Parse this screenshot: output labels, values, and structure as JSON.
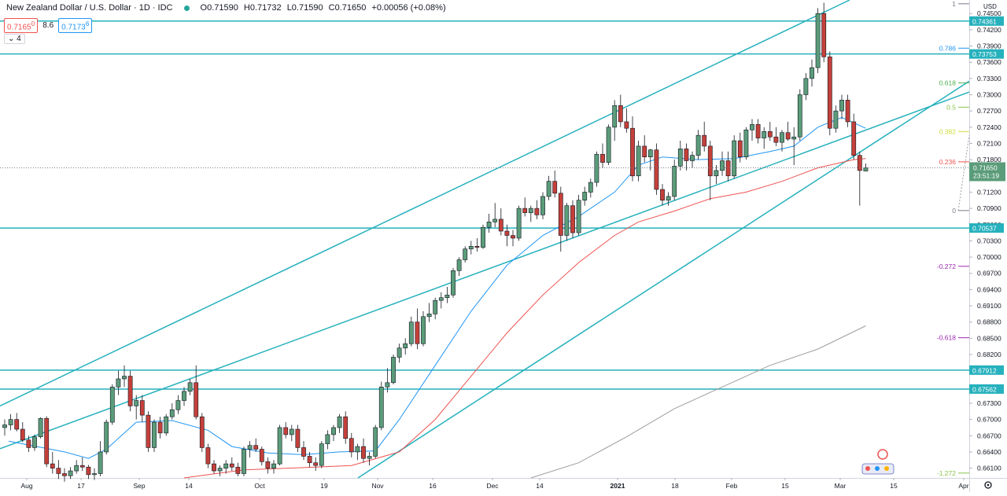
{
  "header": {
    "title": "New Zealand Dollar / U.S. Dollar · 1D · IDC",
    "open": "O0.71590",
    "high": "H0.71732",
    "low": "L0.71590",
    "close": "C0.71650",
    "change": "+0.00056 (+0.08%)",
    "badge_sell": "0.7165",
    "badge_sell_sup": "0",
    "spread": "8.6",
    "badge_buy": "0.7173",
    "badge_buy_sup": "6",
    "collapse_label": "⌄ 4"
  },
  "axis": {
    "currency": "USD",
    "clock": "23:51:19",
    "y_labels": [
      "0.74500",
      "0.74200",
      "0.73900",
      "0.73600",
      "0.73300",
      "0.73000",
      "0.72700",
      "0.72400",
      "0.72100",
      "0.71800",
      "0.71500",
      "0.71200",
      "0.70900",
      "0.70600",
      "0.70300",
      "0.70000",
      "0.69700",
      "0.69400",
      "0.69100",
      "0.68800",
      "0.68500",
      "0.68200",
      "0.67900",
      "0.67600",
      "0.67300",
      "0.67000",
      "0.66700",
      "0.66400",
      "0.66100"
    ],
    "x_labels": [
      "Aug",
      "17",
      "Sep",
      "14",
      "Oct",
      "19",
      "Nov",
      "16",
      "Dec",
      "14",
      "2021",
      "18",
      "Feb",
      "15",
      "Mar",
      "15",
      "Apr"
    ],
    "settings_icon": "gear-icon"
  },
  "colors": {
    "up": "#26a69a",
    "up_body": "#5b9c7a",
    "down": "#c4403a",
    "wick": "#131722",
    "channel": "#26b1bd",
    "ma_fast": "#2196f3",
    "ma_mid": "#ef5350",
    "ma_slow": "#9e9e9e",
    "fib_236": "#ef5350",
    "fib_382": "#cddc39",
    "fib_5": "#8bc34a",
    "fib_618": "#4caf50",
    "fib_786": "#2196f3",
    "fib_neg": "#9c27b0",
    "fib_neg_1272": "#8bc34a"
  },
  "chart_data": {
    "type": "candlestick",
    "title": "New Zealand Dollar / U.S. Dollar · 1D · IDC",
    "ylim": [
      0.6592,
      0.7475
    ],
    "horizontal_levels": [
      {
        "value": 0.74361,
        "label": "0.74361"
      },
      {
        "value": 0.73753,
        "label": "0.73753"
      },
      {
        "value": 0.70537,
        "label": "0.70537"
      },
      {
        "value": 0.67912,
        "label": "0.67912"
      },
      {
        "value": 0.67562,
        "label": "0.67562"
      }
    ],
    "fib_levels": [
      {
        "label": "1",
        "value": 0.7468
      },
      {
        "label": "0.786",
        "value": 0.7386
      },
      {
        "label": "0.618",
        "value": 0.7322
      },
      {
        "label": "0.5",
        "value": 0.7277
      },
      {
        "label": "0.382",
        "value": 0.7232
      },
      {
        "label": "0.236",
        "value": 0.7176
      },
      {
        "label": "0",
        "value": 0.7086
      },
      {
        "label": "-0.272",
        "value": 0.6983
      },
      {
        "label": "-0.618",
        "value": 0.6851
      },
      {
        "label": "-1.272",
        "value": 0.6601
      }
    ],
    "last_price": {
      "value": 0.7165,
      "label": "0.71650"
    },
    "candles": [
      [
        0.6685,
        0.67,
        0.667,
        0.669
      ],
      [
        0.669,
        0.671,
        0.668,
        0.67
      ],
      [
        0.67,
        0.6712,
        0.6678,
        0.6682
      ],
      [
        0.6682,
        0.6695,
        0.6658,
        0.6662
      ],
      [
        0.6662,
        0.667,
        0.664,
        0.6648
      ],
      [
        0.6648,
        0.6672,
        0.6642,
        0.6668
      ],
      [
        0.6668,
        0.6704,
        0.6665,
        0.6702
      ],
      [
        0.6702,
        0.6706,
        0.6612,
        0.6618
      ],
      [
        0.6618,
        0.664,
        0.66,
        0.661
      ],
      [
        0.661,
        0.6625,
        0.659,
        0.66
      ],
      [
        0.66,
        0.661,
        0.6585,
        0.6596
      ],
      [
        0.6596,
        0.6612,
        0.659,
        0.6605
      ],
      [
        0.6605,
        0.6625,
        0.66,
        0.6615
      ],
      [
        0.6615,
        0.663,
        0.6605,
        0.6612
      ],
      [
        0.6612,
        0.6616,
        0.659,
        0.6598
      ],
      [
        0.6598,
        0.661,
        0.6588,
        0.66
      ],
      [
        0.66,
        0.666,
        0.6595,
        0.664
      ],
      [
        0.664,
        0.67,
        0.6635,
        0.6695
      ],
      [
        0.6695,
        0.6765,
        0.669,
        0.676
      ],
      [
        0.676,
        0.679,
        0.6745,
        0.6775
      ],
      [
        0.6775,
        0.68,
        0.676,
        0.678
      ],
      [
        0.678,
        0.679,
        0.6715,
        0.6725
      ],
      [
        0.6725,
        0.6745,
        0.67,
        0.6735
      ],
      [
        0.6735,
        0.6745,
        0.6695,
        0.6708
      ],
      [
        0.6708,
        0.6715,
        0.664,
        0.6648
      ],
      [
        0.6648,
        0.67,
        0.664,
        0.6695
      ],
      [
        0.6695,
        0.6705,
        0.6665,
        0.6675
      ],
      [
        0.6675,
        0.671,
        0.667,
        0.6705
      ],
      [
        0.6705,
        0.673,
        0.67,
        0.6718
      ],
      [
        0.6718,
        0.6745,
        0.671,
        0.6735
      ],
      [
        0.6735,
        0.676,
        0.6725,
        0.6752
      ],
      [
        0.6752,
        0.6775,
        0.6745,
        0.6768
      ],
      [
        0.6768,
        0.68,
        0.67,
        0.6705
      ],
      [
        0.6705,
        0.6712,
        0.664,
        0.6648
      ],
      [
        0.6648,
        0.6655,
        0.661,
        0.6618
      ],
      [
        0.6618,
        0.6625,
        0.66,
        0.6605
      ],
      [
        0.6605,
        0.6615,
        0.6595,
        0.661
      ],
      [
        0.661,
        0.6625,
        0.66,
        0.6618
      ],
      [
        0.6618,
        0.663,
        0.6605,
        0.6612
      ],
      [
        0.6612,
        0.662,
        0.6595,
        0.66
      ],
      [
        0.66,
        0.665,
        0.6595,
        0.6645
      ],
      [
        0.6645,
        0.666,
        0.663,
        0.6652
      ],
      [
        0.6652,
        0.6665,
        0.664,
        0.6645
      ],
      [
        0.6645,
        0.665,
        0.6615,
        0.6622
      ],
      [
        0.6622,
        0.663,
        0.66,
        0.661
      ],
      [
        0.661,
        0.6625,
        0.66,
        0.6618
      ],
      [
        0.6618,
        0.669,
        0.6615,
        0.6685
      ],
      [
        0.6685,
        0.6695,
        0.6665,
        0.6672
      ],
      [
        0.6672,
        0.669,
        0.666,
        0.6682
      ],
      [
        0.6682,
        0.669,
        0.664,
        0.6648
      ],
      [
        0.6648,
        0.666,
        0.6625,
        0.6632
      ],
      [
        0.6632,
        0.664,
        0.6612,
        0.662
      ],
      [
        0.662,
        0.663,
        0.6605,
        0.6615
      ],
      [
        0.6615,
        0.666,
        0.661,
        0.6655
      ],
      [
        0.6655,
        0.668,
        0.6645,
        0.6672
      ],
      [
        0.6672,
        0.669,
        0.666,
        0.6685
      ],
      [
        0.6685,
        0.671,
        0.6675,
        0.6705
      ],
      [
        0.6705,
        0.6715,
        0.6655,
        0.6665
      ],
      [
        0.6665,
        0.6675,
        0.663,
        0.664
      ],
      [
        0.664,
        0.6655,
        0.6625,
        0.665
      ],
      [
        0.665,
        0.6665,
        0.662,
        0.6628
      ],
      [
        0.6628,
        0.664,
        0.6615,
        0.6632
      ],
      [
        0.6632,
        0.669,
        0.6628,
        0.6685
      ],
      [
        0.6685,
        0.677,
        0.668,
        0.676
      ],
      [
        0.676,
        0.6795,
        0.675,
        0.6768
      ],
      [
        0.6768,
        0.682,
        0.6765,
        0.6815
      ],
      [
        0.6815,
        0.684,
        0.6805,
        0.6832
      ],
      [
        0.6832,
        0.685,
        0.682,
        0.684
      ],
      [
        0.684,
        0.689,
        0.6835,
        0.688
      ],
      [
        0.688,
        0.6905,
        0.683,
        0.684
      ],
      [
        0.684,
        0.69,
        0.6835,
        0.689
      ],
      [
        0.689,
        0.6915,
        0.688,
        0.6895
      ],
      [
        0.6895,
        0.6925,
        0.6885,
        0.692
      ],
      [
        0.692,
        0.6935,
        0.6905,
        0.6925
      ],
      [
        0.6925,
        0.6945,
        0.6915,
        0.693
      ],
      [
        0.693,
        0.698,
        0.6925,
        0.6975
      ],
      [
        0.6975,
        0.7,
        0.6965,
        0.6995
      ],
      [
        0.6995,
        0.702,
        0.699,
        0.7015
      ],
      [
        0.7015,
        0.703,
        0.7005,
        0.702
      ],
      [
        0.702,
        0.7035,
        0.701,
        0.7018
      ],
      [
        0.7018,
        0.706,
        0.7015,
        0.7055
      ],
      [
        0.7055,
        0.708,
        0.7045,
        0.7065
      ],
      [
        0.7065,
        0.71,
        0.7055,
        0.707
      ],
      [
        0.707,
        0.709,
        0.704,
        0.7048
      ],
      [
        0.7048,
        0.706,
        0.702,
        0.704
      ],
      [
        0.704,
        0.705,
        0.702,
        0.7035
      ],
      [
        0.7035,
        0.7095,
        0.703,
        0.709
      ],
      [
        0.709,
        0.711,
        0.7075,
        0.7082
      ],
      [
        0.7082,
        0.7095,
        0.7065,
        0.709
      ],
      [
        0.709,
        0.7105,
        0.707,
        0.7078
      ],
      [
        0.7078,
        0.712,
        0.707,
        0.7112
      ],
      [
        0.7112,
        0.715,
        0.7105,
        0.714
      ],
      [
        0.714,
        0.716,
        0.711,
        0.7118
      ],
      [
        0.7118,
        0.713,
        0.701,
        0.704
      ],
      [
        0.704,
        0.71,
        0.703,
        0.7095
      ],
      [
        0.7095,
        0.7105,
        0.7035,
        0.7045
      ],
      [
        0.7045,
        0.7115,
        0.704,
        0.7105
      ],
      [
        0.7105,
        0.713,
        0.7095,
        0.712
      ],
      [
        0.712,
        0.7145,
        0.711,
        0.7138
      ],
      [
        0.7138,
        0.7195,
        0.713,
        0.719
      ],
      [
        0.719,
        0.721,
        0.7165,
        0.7175
      ],
      [
        0.7175,
        0.7245,
        0.717,
        0.724
      ],
      [
        0.724,
        0.729,
        0.7215,
        0.728
      ],
      [
        0.728,
        0.73,
        0.724,
        0.725
      ],
      [
        0.725,
        0.7275,
        0.723,
        0.7238
      ],
      [
        0.7238,
        0.726,
        0.714,
        0.715
      ],
      [
        0.715,
        0.7215,
        0.714,
        0.7205
      ],
      [
        0.7205,
        0.7225,
        0.7175,
        0.7185
      ],
      [
        0.7185,
        0.72,
        0.716,
        0.7198
      ],
      [
        0.7198,
        0.721,
        0.7115,
        0.7125
      ],
      [
        0.7125,
        0.7135,
        0.7095,
        0.7105
      ],
      [
        0.7105,
        0.712,
        0.7095,
        0.7112
      ],
      [
        0.7112,
        0.718,
        0.7105,
        0.7168
      ],
      [
        0.7168,
        0.7215,
        0.716,
        0.72
      ],
      [
        0.72,
        0.721,
        0.716,
        0.7178
      ],
      [
        0.7178,
        0.7195,
        0.7165,
        0.7188
      ],
      [
        0.7188,
        0.7235,
        0.718,
        0.7225
      ],
      [
        0.7225,
        0.725,
        0.7195,
        0.7205
      ],
      [
        0.7205,
        0.7215,
        0.7105,
        0.715
      ],
      [
        0.715,
        0.717,
        0.7135,
        0.716
      ],
      [
        0.716,
        0.7195,
        0.715,
        0.7178
      ],
      [
        0.7178,
        0.7195,
        0.714,
        0.715
      ],
      [
        0.715,
        0.7225,
        0.7145,
        0.7215
      ],
      [
        0.7215,
        0.723,
        0.7175,
        0.7185
      ],
      [
        0.7185,
        0.724,
        0.718,
        0.7235
      ],
      [
        0.7235,
        0.7255,
        0.7215,
        0.7245
      ],
      [
        0.7245,
        0.7255,
        0.721,
        0.722
      ],
      [
        0.722,
        0.724,
        0.72,
        0.7232
      ],
      [
        0.7232,
        0.725,
        0.7215,
        0.7222
      ],
      [
        0.7222,
        0.724,
        0.7205,
        0.7212
      ],
      [
        0.7212,
        0.7235,
        0.7195,
        0.723
      ],
      [
        0.723,
        0.725,
        0.7215,
        0.7218
      ],
      [
        0.7218,
        0.724,
        0.717,
        0.7222
      ],
      [
        0.7222,
        0.731,
        0.7215,
        0.73
      ],
      [
        0.73,
        0.734,
        0.729,
        0.733
      ],
      [
        0.733,
        0.7365,
        0.7315,
        0.735
      ],
      [
        0.735,
        0.746,
        0.734,
        0.745
      ],
      [
        0.745,
        0.747,
        0.736,
        0.737
      ],
      [
        0.737,
        0.738,
        0.7225,
        0.7238
      ],
      [
        0.7238,
        0.728,
        0.723,
        0.727
      ],
      [
        0.727,
        0.73,
        0.7255,
        0.729
      ],
      [
        0.729,
        0.73,
        0.724,
        0.725
      ],
      [
        0.725,
        0.7265,
        0.718,
        0.7188
      ],
      [
        0.7188,
        0.7195,
        0.7095,
        0.716
      ],
      [
        0.7159,
        0.7173,
        0.7159,
        0.7165
      ]
    ],
    "moving_averages": [
      {
        "period": 20,
        "color": "#2196f3",
        "points": [
          [
            0.664,
            0.666
          ],
          [
            10,
            0.664
          ],
          [
            14,
            0.6628
          ],
          [
            17,
            0.6645
          ],
          [
            22,
            0.6695
          ],
          [
            28,
            0.6698
          ],
          [
            34,
            0.668
          ],
          [
            38,
            0.665
          ],
          [
            44,
            0.6638
          ],
          [
            50,
            0.6635
          ],
          [
            56,
            0.664
          ],
          [
            62,
            0.6642
          ],
          [
            66,
            0.67
          ],
          [
            72,
            0.68
          ],
          [
            78,
            0.69
          ],
          [
            84,
            0.6985
          ],
          [
            90,
            0.704
          ],
          [
            96,
            0.7075
          ],
          [
            102,
            0.712
          ],
          [
            106,
            0.717
          ],
          [
            110,
            0.7185
          ],
          [
            116,
            0.718
          ],
          [
            122,
            0.7182
          ],
          [
            128,
            0.7195
          ],
          [
            132,
            0.7205
          ],
          [
            136,
            0.724
          ],
          [
            140,
            0.7258
          ],
          [
            144,
            0.7238
          ]
        ]
      },
      {
        "period": 50,
        "color": "#ef5350",
        "points": [
          [
            30,
            0.6592
          ],
          [
            40,
            0.6607
          ],
          [
            50,
            0.6611
          ],
          [
            58,
            0.6615
          ],
          [
            66,
            0.664
          ],
          [
            72,
            0.67
          ],
          [
            78,
            0.678
          ],
          [
            84,
            0.686
          ],
          [
            90,
            0.693
          ],
          [
            96,
            0.699
          ],
          [
            102,
            0.704
          ],
          [
            106,
            0.7065
          ],
          [
            112,
            0.7085
          ],
          [
            118,
            0.7108
          ],
          [
            124,
            0.712
          ],
          [
            130,
            0.714
          ],
          [
            136,
            0.7165
          ],
          [
            142,
            0.718
          ],
          [
            144,
            0.7182
          ]
        ]
      },
      {
        "period": 200,
        "color": "#9e9e9e",
        "points": [
          [
            88,
            0.6592
          ],
          [
            96,
            0.662
          ],
          [
            104,
            0.6668
          ],
          [
            112,
            0.672
          ],
          [
            120,
            0.676
          ],
          [
            128,
            0.68
          ],
          [
            136,
            0.683
          ],
          [
            144,
            0.6873
          ]
        ]
      }
    ]
  }
}
